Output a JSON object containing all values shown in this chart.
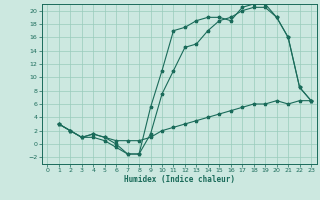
{
  "xlabel": "Humidex (Indice chaleur)",
  "bg_color": "#cce8e0",
  "grid_color": "#99ccbb",
  "line_color": "#1a6b5a",
  "xlim": [
    -0.5,
    23.5
  ],
  "ylim": [
    -3,
    21
  ],
  "xticks": [
    0,
    1,
    2,
    3,
    4,
    5,
    6,
    7,
    8,
    9,
    10,
    11,
    12,
    13,
    14,
    15,
    16,
    17,
    18,
    19,
    20,
    21,
    22,
    23
  ],
  "yticks": [
    -2,
    0,
    2,
    4,
    6,
    8,
    10,
    12,
    14,
    16,
    18,
    20
  ],
  "line1_x": [
    1,
    2,
    3,
    4,
    5,
    6,
    7,
    8,
    9,
    10,
    11,
    12,
    13,
    14,
    15,
    16,
    17,
    18,
    19,
    20,
    21,
    22,
    23
  ],
  "line1_y": [
    3,
    2,
    1,
    1,
    0.5,
    -0.5,
    -1.5,
    -1.5,
    5.5,
    11,
    17,
    17.5,
    18.5,
    19,
    19,
    18.5,
    20.5,
    21,
    21,
    19,
    16,
    8.5,
    6.5
  ],
  "line2_x": [
    1,
    2,
    3,
    4,
    5,
    6,
    7,
    8,
    9,
    10,
    11,
    12,
    13,
    14,
    15,
    16,
    17,
    18,
    19,
    20,
    21,
    22,
    23
  ],
  "line2_y": [
    3,
    2,
    1,
    1.5,
    1.0,
    0.5,
    0.5,
    0.5,
    1.0,
    2.0,
    2.5,
    3.0,
    3.5,
    4.0,
    4.5,
    5.0,
    5.5,
    6.0,
    6.0,
    6.5,
    6.0,
    6.5,
    6.5
  ],
  "line3_x": [
    1,
    2,
    3,
    4,
    5,
    6,
    7,
    8,
    9,
    10,
    11,
    12,
    13,
    14,
    15,
    16,
    17,
    18,
    19,
    20,
    21,
    22,
    23
  ],
  "line3_y": [
    3,
    2,
    1,
    1.5,
    1.0,
    0.0,
    -1.5,
    -1.5,
    1.5,
    7.5,
    11,
    14.5,
    15,
    17,
    18.5,
    19,
    20,
    20.5,
    20.5,
    19,
    16,
    8.5,
    6.5
  ]
}
